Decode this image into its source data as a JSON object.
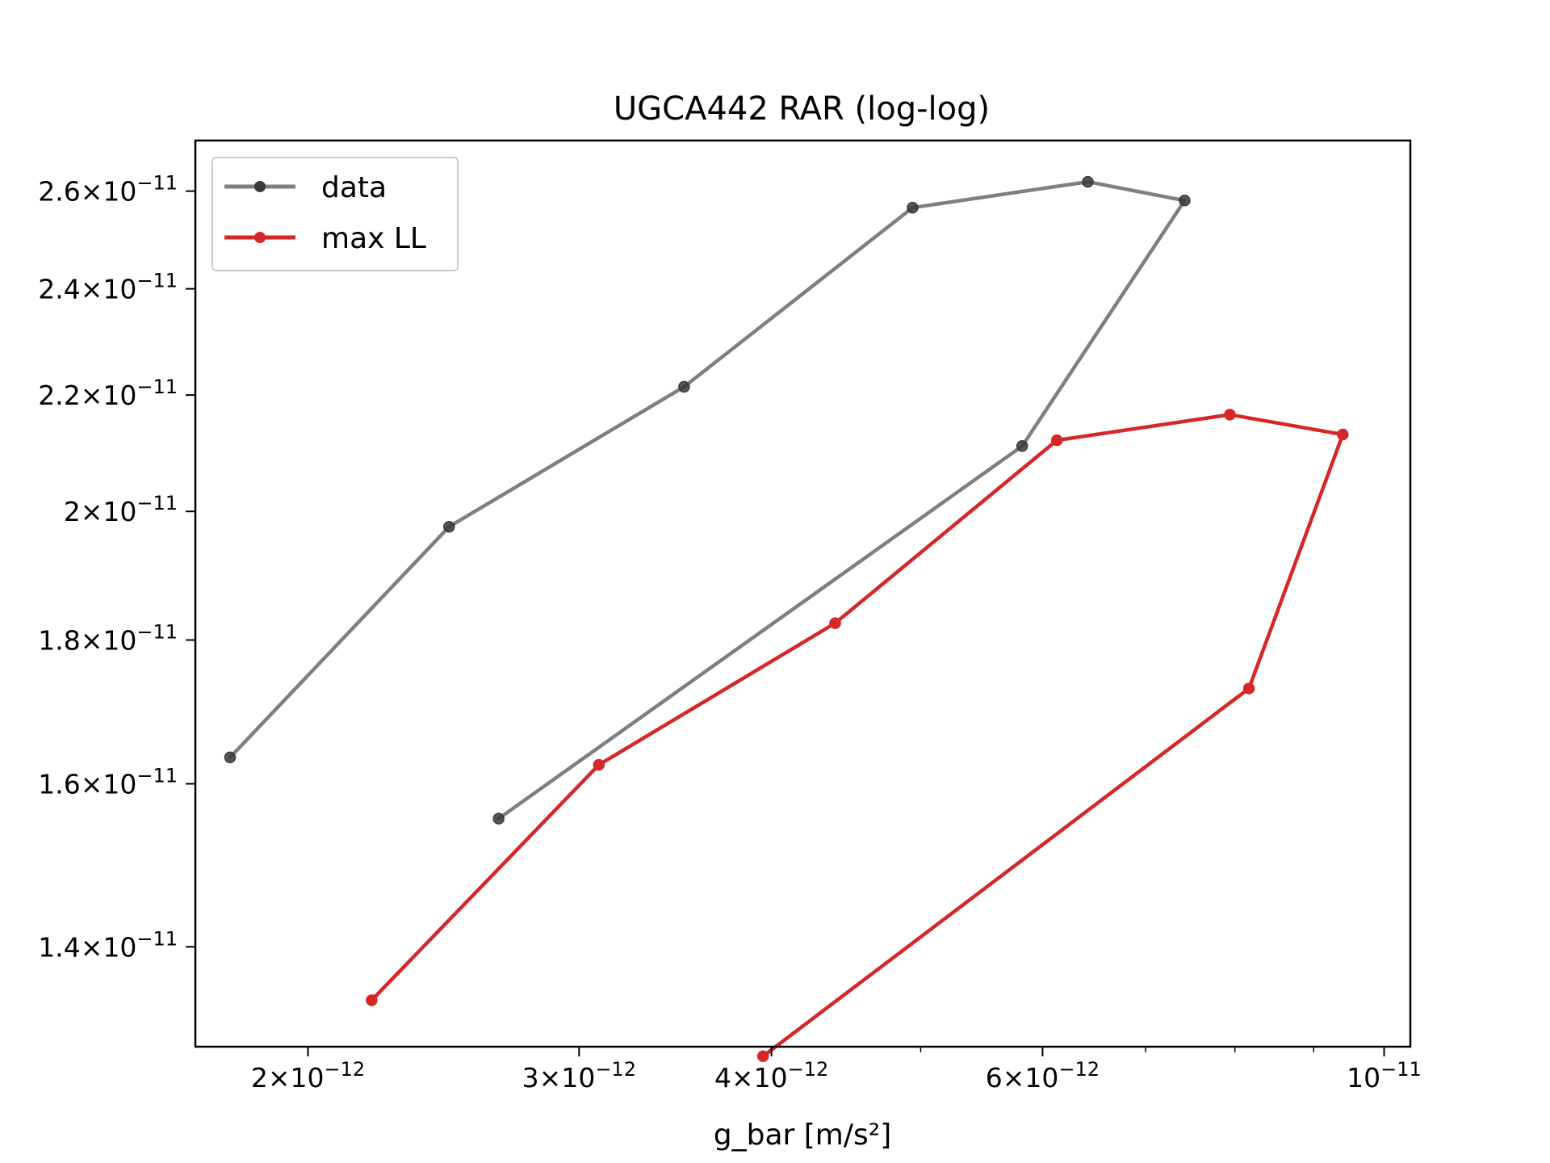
{
  "chart_data": {
    "type": "line",
    "title": "UGCA442 RAR (log-log)",
    "xlabel": "g_bar [m/s²]",
    "ylabel": "",
    "xscale": "log",
    "yscale": "log",
    "xlim": [
      1.69e-12,
      1.04e-11
    ],
    "ylim": [
      1.29e-11,
      2.71e-11
    ],
    "grid": false,
    "legend_position": "top-left",
    "x_ticks": [
      {
        "value": 2e-12,
        "mantissa": "2",
        "exponent": "−12"
      },
      {
        "value": 3e-12,
        "mantissa": "3",
        "exponent": "−12"
      },
      {
        "value": 4e-12,
        "mantissa": "4",
        "exponent": "−12"
      },
      {
        "value": 6e-12,
        "mantissa": "6",
        "exponent": "−12"
      },
      {
        "value": 1e-11,
        "mantissa": "",
        "exponent": "−11"
      }
    ],
    "x_minor_ticks": [
      5e-12,
      7e-12,
      8e-12,
      9e-12
    ],
    "y_ticks": [
      {
        "value": 1.4e-11,
        "mantissa": "1.4",
        "exponent": "−11"
      },
      {
        "value": 1.6e-11,
        "mantissa": "1.6",
        "exponent": "−11"
      },
      {
        "value": 1.8e-11,
        "mantissa": "1.8",
        "exponent": "−11"
      },
      {
        "value": 2e-11,
        "mantissa": "2",
        "exponent": "−11"
      },
      {
        "value": 2.2e-11,
        "mantissa": "2.2",
        "exponent": "−11"
      },
      {
        "value": 2.4e-11,
        "mantissa": "2.4",
        "exponent": "−11"
      },
      {
        "value": 2.6e-11,
        "mantissa": "2.6",
        "exponent": "−11"
      }
    ],
    "series": [
      {
        "name": "data",
        "color": "#7f7f7f",
        "marker_color": "#3a3a3a",
        "x": [
          1.78e-12,
          2.47e-12,
          3.51e-12,
          4.94e-12,
          6.42e-12,
          7.42e-12,
          5.82e-12,
          2.66e-12
        ],
        "y": [
          1.635e-11,
          1.975e-11,
          2.215e-11,
          2.565e-11,
          2.62e-11,
          2.58e-11,
          2.11e-11,
          1.555e-11
        ]
      },
      {
        "name": "max LL",
        "color": "#d62728",
        "marker_color": "#d62728",
        "x": [
          2.2e-12,
          3.09e-12,
          4.4e-12,
          6.13e-12,
          7.94e-12,
          9.4e-12,
          8.17e-12,
          3.95e-12
        ],
        "y": [
          1.34e-11,
          1.625e-11,
          1.825e-11,
          2.12e-11,
          2.165e-11,
          2.13e-11,
          1.73e-11,
          1.28e-11
        ]
      }
    ]
  }
}
